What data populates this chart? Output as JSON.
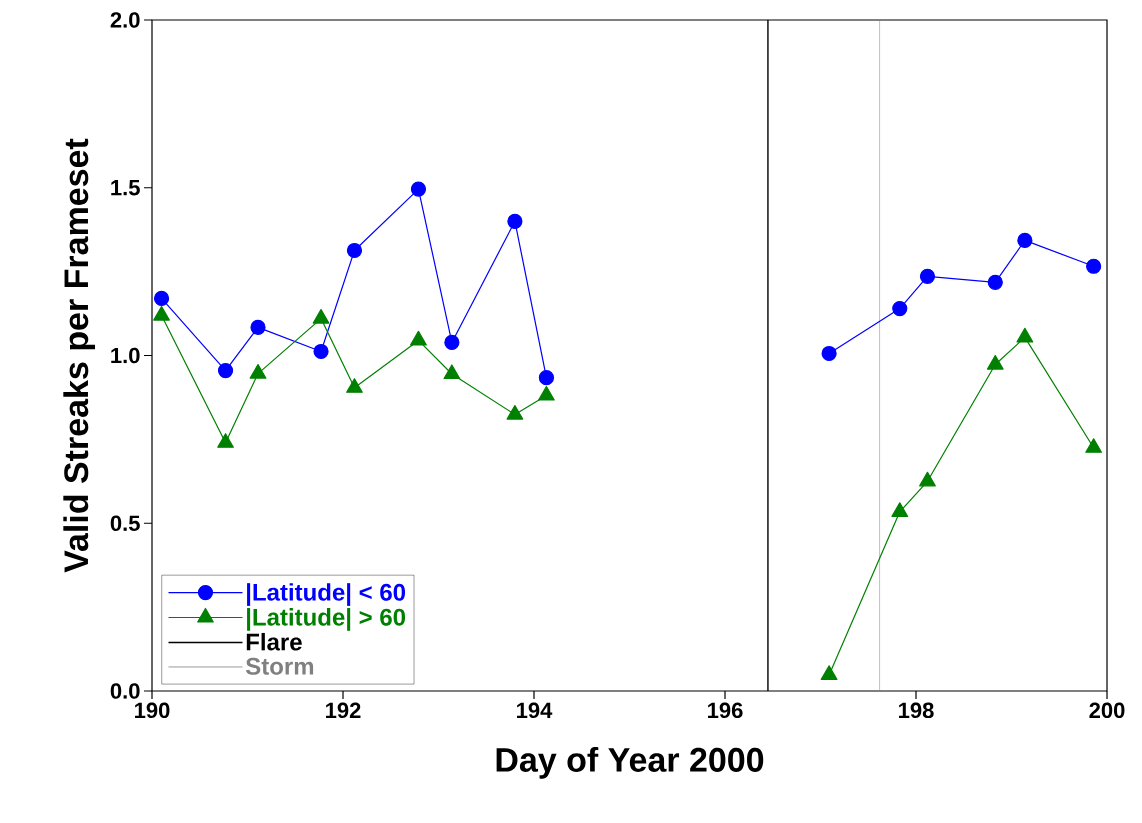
{
  "chart_data": {
    "type": "line",
    "xlabel": "Day of Year 2000",
    "ylabel": "Valid Streaks per Frameset",
    "xlim": [
      190,
      200
    ],
    "xticks": [
      190,
      192,
      194,
      196,
      198,
      200
    ],
    "ylim": [
      0,
      2
    ],
    "yticks": [
      {
        "value": 0,
        "label": "0.0"
      },
      {
        "value": 0.5,
        "label": "0.5"
      },
      {
        "value": 1,
        "label": "1.0"
      },
      {
        "value": 1.5,
        "label": "1.5"
      },
      {
        "value": 2,
        "label": "2.0"
      }
    ],
    "grid": false,
    "legend": "bottom left",
    "line_style": "solid",
    "series": [
      {
        "name": "|Latitude| < 60",
        "color": "#0000ff",
        "marker": "circle",
        "x": [
          190.1,
          190.77,
          191.11,
          191.77,
          192.12,
          192.79,
          193.14,
          193.8,
          194.13,
          195.6,
          197.09,
          197.83,
          198.12,
          198.83,
          199.14,
          199.86
        ],
        "values": [
          1.17,
          0.955,
          1.084,
          1.012,
          1.313,
          1.496,
          1.039,
          1.4,
          0.934,
          null,
          1.006,
          1.14,
          1.236,
          1.218,
          1.343,
          1.266
        ]
      },
      {
        "name": "|Latitude| > 60",
        "color": "#008000",
        "marker": "triangle",
        "x": [
          190.1,
          190.77,
          191.11,
          191.77,
          192.12,
          192.79,
          193.14,
          193.8,
          194.13,
          195.6,
          197.09,
          197.83,
          198.12,
          198.83,
          199.14,
          199.86
        ],
        "values": [
          1.119,
          0.74,
          0.946,
          1.11,
          0.904,
          1.045,
          0.945,
          0.824,
          0.881,
          null,
          0.048,
          0.534,
          0.625,
          0.973,
          1.054,
          0.725
        ]
      }
    ],
    "ref_lines": [
      {
        "axis": "x",
        "value": 196.45,
        "label": "Flare",
        "color": "#000000",
        "line_style": "solid"
      },
      {
        "axis": "x",
        "value": 197.62,
        "label": "Storm",
        "color": "#808080",
        "line_style": "solid"
      }
    ]
  }
}
